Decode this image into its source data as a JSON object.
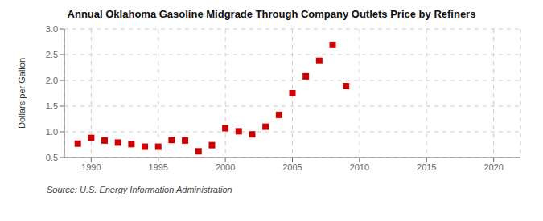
{
  "chart_data": {
    "type": "scatter",
    "title": "Annual Oklahoma Gasoline Midgrade Through Company Outlets Price by Refiners",
    "ylabel": "Dollars per Gallon",
    "annotation": "Source: U.S. Energy Information Administration",
    "x": [
      1989,
      1990,
      1991,
      1992,
      1993,
      1994,
      1995,
      1996,
      1997,
      1998,
      1999,
      2000,
      2001,
      2002,
      2003,
      2004,
      2005,
      2006,
      2007,
      2008,
      2009
    ],
    "values": [
      0.77,
      0.88,
      0.83,
      0.79,
      0.76,
      0.71,
      0.71,
      0.84,
      0.83,
      0.62,
      0.74,
      1.07,
      1.01,
      0.95,
      1.1,
      1.33,
      1.75,
      2.08,
      2.38,
      2.69,
      1.89
    ],
    "color": "#cc0000",
    "marker": "square",
    "xlim": [
      1988,
      2022
    ],
    "ylim": [
      0.5,
      3.0
    ],
    "xticks": [
      1990,
      1995,
      2000,
      2005,
      2010,
      2015,
      2020
    ],
    "yticks": [
      0.5,
      {
        "value": 1.0,
        "label": "1.0"
      },
      1.5,
      {
        "value": 2.0,
        "label": "2.0"
      },
      2.5,
      {
        "value": 3.0,
        "label": "3.0"
      }
    ],
    "grid": true
  }
}
